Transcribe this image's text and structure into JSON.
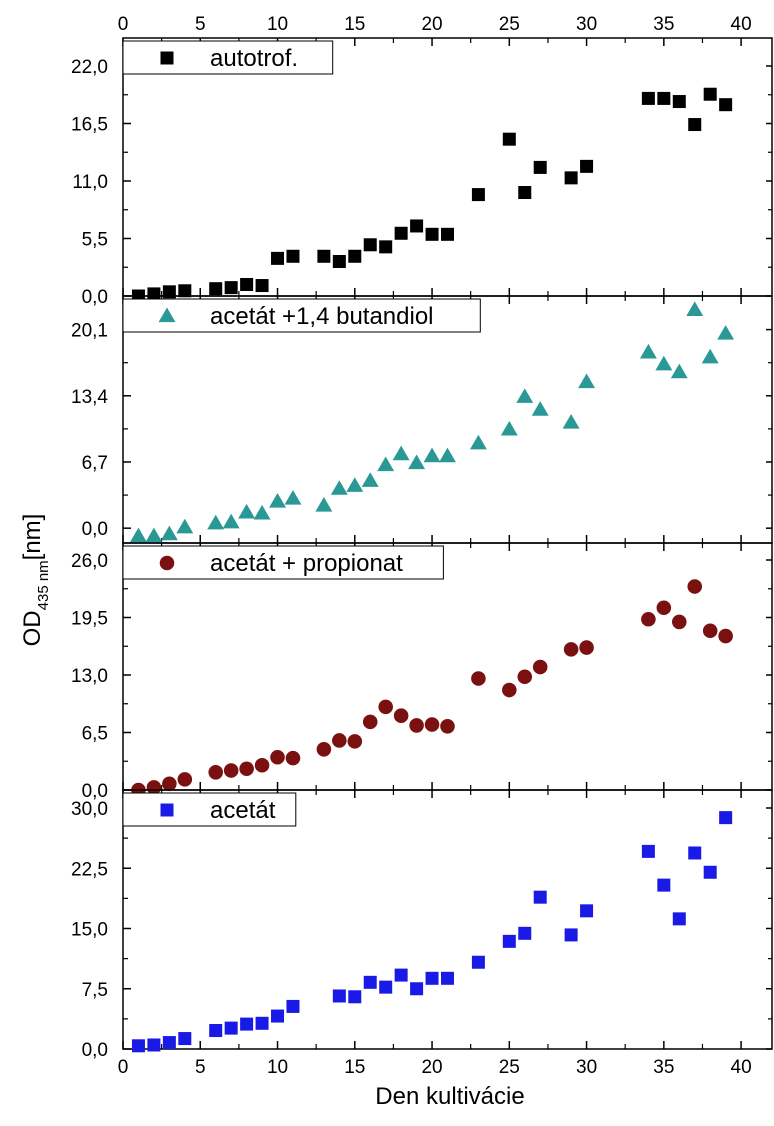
{
  "figure": {
    "xlabel": "Den kultivácie",
    "ylabel_main": "OD",
    "ylabel_sub": "435 nm",
    "ylabel_unit": "[nm]"
  },
  "chart_data": [
    {
      "type": "scatter",
      "legend": "autotrof.",
      "marker": "square",
      "color": "#000000",
      "xlim": [
        0,
        42
      ],
      "ylim": [
        0,
        22
      ],
      "yticks": [
        "0,0",
        "5,5",
        "11,0",
        "16,5",
        "22,0"
      ],
      "yticks_values": [
        0,
        5.5,
        11,
        16.5,
        22
      ],
      "xticks": [
        0,
        5,
        10,
        15,
        20,
        25,
        30,
        35,
        40
      ],
      "points": [
        [
          1,
          0.0
        ],
        [
          2,
          0.2
        ],
        [
          3,
          0.4
        ],
        [
          4,
          0.5
        ],
        [
          6,
          0.7
        ],
        [
          7,
          0.8
        ],
        [
          8,
          1.1
        ],
        [
          9,
          1.0
        ],
        [
          10,
          3.6
        ],
        [
          11,
          3.8
        ],
        [
          13,
          3.8
        ],
        [
          14,
          3.3
        ],
        [
          15,
          3.8
        ],
        [
          16,
          4.9
        ],
        [
          17,
          4.7
        ],
        [
          18,
          6.0
        ],
        [
          19,
          6.7
        ],
        [
          20,
          5.9
        ],
        [
          21,
          5.9
        ],
        [
          23,
          9.7
        ],
        [
          25,
          15.0
        ],
        [
          26,
          9.9
        ],
        [
          27,
          12.3
        ],
        [
          29,
          11.3
        ],
        [
          30,
          12.4
        ],
        [
          34,
          18.9
        ],
        [
          35,
          18.9
        ],
        [
          36,
          18.6
        ],
        [
          37,
          16.4
        ],
        [
          38,
          19.3
        ],
        [
          39,
          18.3
        ]
      ]
    },
    {
      "type": "scatter",
      "legend": "acetát +1,4 butandiol",
      "marker": "triangle",
      "color": "#2a9995",
      "xlim": [
        0,
        42
      ],
      "ylim": [
        -1.5,
        23.5
      ],
      "yticks": [
        "0,0",
        "6,7",
        "13,4",
        "20,1"
      ],
      "yticks_values": [
        0,
        6.7,
        13.4,
        20.1
      ],
      "xticks": [
        0,
        5,
        10,
        15,
        20,
        25,
        30,
        35,
        40
      ],
      "points": [
        [
          1,
          -0.8
        ],
        [
          2,
          -0.8
        ],
        [
          3,
          -0.6
        ],
        [
          4,
          0.1
        ],
        [
          6,
          0.5
        ],
        [
          7,
          0.6
        ],
        [
          8,
          1.6
        ],
        [
          9,
          1.5
        ],
        [
          10,
          2.7
        ],
        [
          11,
          3.0
        ],
        [
          13,
          2.3
        ],
        [
          14,
          4.0
        ],
        [
          15,
          4.3
        ],
        [
          16,
          4.8
        ],
        [
          17,
          6.4
        ],
        [
          18,
          7.5
        ],
        [
          19,
          6.6
        ],
        [
          20,
          7.3
        ],
        [
          21,
          7.3
        ],
        [
          23,
          8.6
        ],
        [
          25,
          10.0
        ],
        [
          26,
          13.3
        ],
        [
          27,
          12.0
        ],
        [
          29,
          10.7
        ],
        [
          30,
          14.8
        ],
        [
          34,
          17.8
        ],
        [
          35,
          16.6
        ],
        [
          36,
          15.8
        ],
        [
          37,
          22.1
        ],
        [
          38,
          17.3
        ],
        [
          39,
          19.7
        ]
      ]
    },
    {
      "type": "scatter",
      "legend": "acetát + propionat",
      "marker": "circle",
      "color": "#7b1010",
      "xlim": [
        0,
        42
      ],
      "ylim": [
        0,
        26
      ],
      "yticks": [
        "0,0",
        "6,5",
        "13,0",
        "19,5",
        "26,0"
      ],
      "yticks_values": [
        0,
        6.5,
        13,
        19.5,
        26
      ],
      "xticks": [
        0,
        5,
        10,
        15,
        20,
        25,
        30,
        35,
        40
      ],
      "points": [
        [
          1,
          0.0
        ],
        [
          2,
          0.3
        ],
        [
          3,
          0.7
        ],
        [
          4,
          1.2
        ],
        [
          6,
          2.0
        ],
        [
          7,
          2.2
        ],
        [
          8,
          2.4
        ],
        [
          9,
          2.8
        ],
        [
          10,
          3.7
        ],
        [
          11,
          3.6
        ],
        [
          13,
          4.6
        ],
        [
          14,
          5.6
        ],
        [
          15,
          5.5
        ],
        [
          16,
          7.7
        ],
        [
          17,
          9.4
        ],
        [
          18,
          8.4
        ],
        [
          19,
          7.3
        ],
        [
          20,
          7.4
        ],
        [
          21,
          7.2
        ],
        [
          23,
          12.6
        ],
        [
          25,
          11.3
        ],
        [
          26,
          12.8
        ],
        [
          27,
          13.9
        ],
        [
          29,
          15.9
        ],
        [
          30,
          16.1
        ],
        [
          34,
          19.3
        ],
        [
          35,
          20.6
        ],
        [
          36,
          19.0
        ],
        [
          37,
          23.0
        ],
        [
          38,
          18.0
        ],
        [
          39,
          17.4
        ]
      ]
    },
    {
      "type": "scatter",
      "legend": "acetát",
      "marker": "square",
      "color": "#1a1ae6",
      "xlim": [
        0,
        42
      ],
      "ylim": [
        0,
        30
      ],
      "yticks": [
        "0,0",
        "7,5",
        "15,0",
        "22,5",
        "30,0"
      ],
      "yticks_values": [
        0,
        7.5,
        15,
        22.5,
        30
      ],
      "xticks": [
        0,
        5,
        10,
        15,
        20,
        25,
        30,
        35,
        40
      ],
      "points": [
        [
          1,
          0.4
        ],
        [
          2,
          0.5
        ],
        [
          3,
          0.8
        ],
        [
          4,
          1.3
        ],
        [
          6,
          2.3
        ],
        [
          7,
          2.6
        ],
        [
          8,
          3.1
        ],
        [
          9,
          3.2
        ],
        [
          10,
          4.1
        ],
        [
          11,
          5.3
        ],
        [
          14,
          6.6
        ],
        [
          15,
          6.5
        ],
        [
          16,
          8.3
        ],
        [
          17,
          7.7
        ],
        [
          18,
          9.2
        ],
        [
          19,
          7.5
        ],
        [
          20,
          8.8
        ],
        [
          21,
          8.8
        ],
        [
          23,
          10.8
        ],
        [
          25,
          13.4
        ],
        [
          26,
          14.4
        ],
        [
          27,
          18.9
        ],
        [
          29,
          14.2
        ],
        [
          30,
          17.2
        ],
        [
          34,
          24.6
        ],
        [
          35,
          20.4
        ],
        [
          36,
          16.2
        ],
        [
          37,
          24.4
        ],
        [
          38,
          22.0
        ],
        [
          39,
          28.8
        ]
      ]
    }
  ]
}
